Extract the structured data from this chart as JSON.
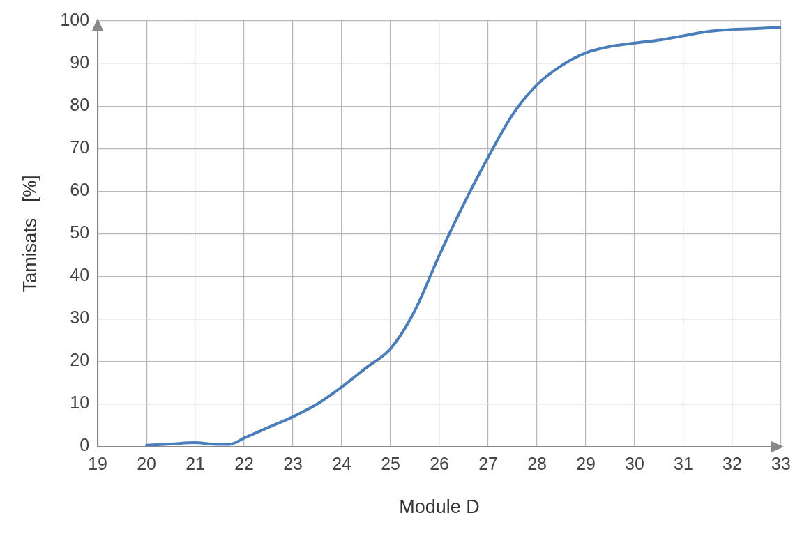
{
  "chart_data": {
    "type": "line",
    "xlabel": "Module D",
    "ylabel": "Tamisats   [%]",
    "series": [
      {
        "color": "#4a7ebb",
        "x": [
          20,
          20.5,
          21,
          21.3,
          21.7,
          22,
          22.5,
          23,
          23.5,
          24,
          24.5,
          25,
          25.5,
          26,
          26.5,
          27,
          27.5,
          28,
          28.5,
          29,
          29.5,
          30,
          30.5,
          31,
          31.5,
          32,
          32.5,
          33
        ],
        "values": [
          0.3,
          0.6,
          0.9,
          0.6,
          0.5,
          2,
          4.5,
          7,
          10,
          14,
          18.5,
          23,
          32,
          45,
          57,
          68,
          78,
          85,
          89.5,
          92.5,
          94,
          94.8,
          95.5,
          96.5,
          97.5,
          98,
          98.2,
          98.5
        ]
      }
    ],
    "xlim": [
      19,
      33
    ],
    "xticks": [
      19,
      20,
      21,
      22,
      23,
      24,
      25,
      26,
      27,
      28,
      29,
      30,
      31,
      32,
      33
    ],
    "ylim": [
      0,
      100
    ],
    "yticks": [
      0,
      10,
      20,
      30,
      40,
      50,
      60,
      70,
      80,
      90,
      100
    ],
    "grid": true,
    "legend": false,
    "marker": "none",
    "line_style": "solid"
  }
}
